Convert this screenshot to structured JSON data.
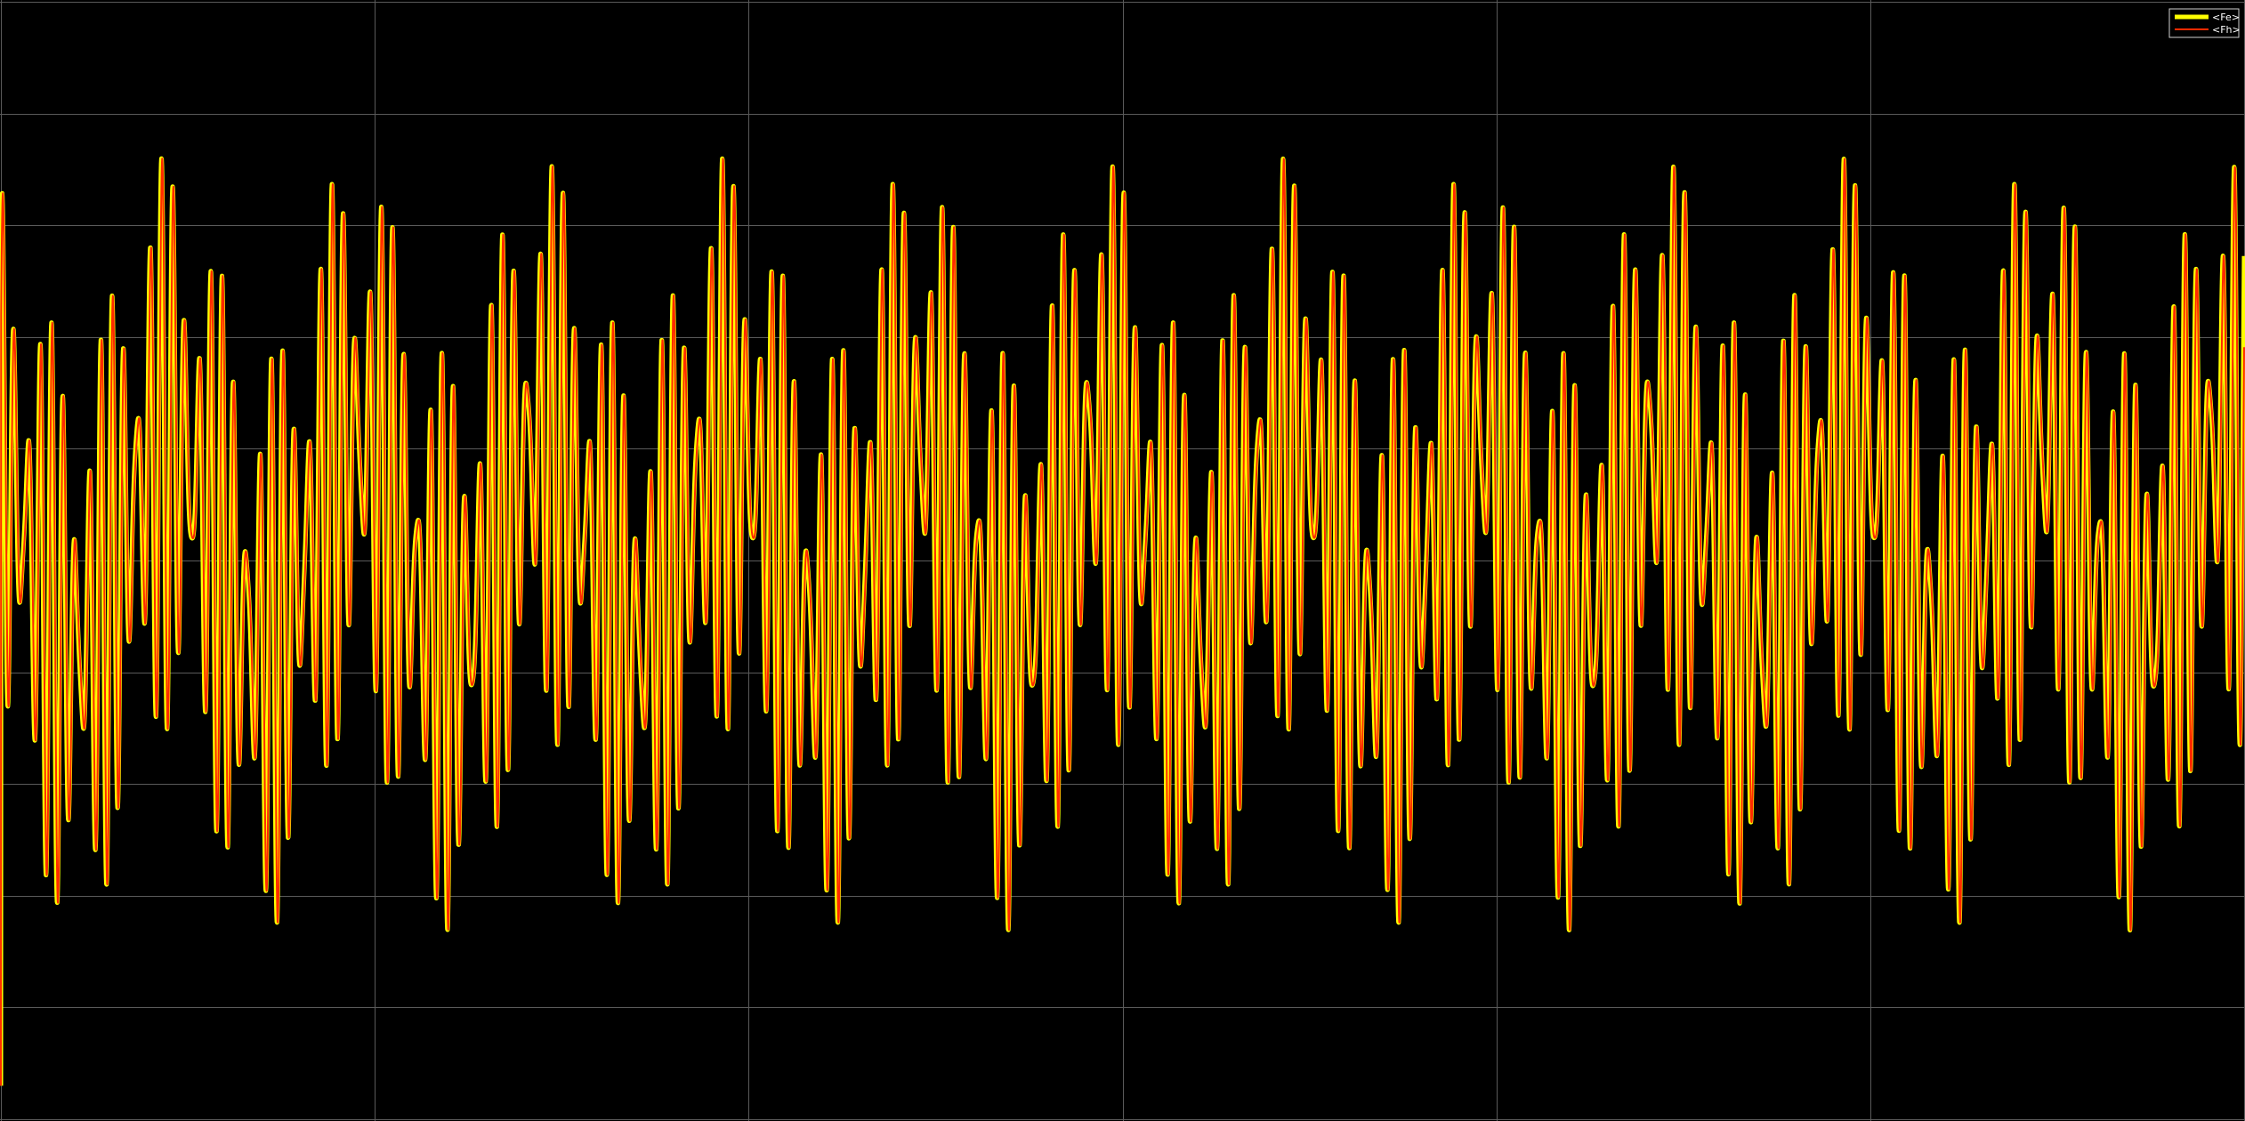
{
  "chart_data": {
    "type": "line",
    "title": "",
    "xlabel": "",
    "ylabel": "",
    "grid": true,
    "background": "#000000",
    "grid_color": "#5a5a5a",
    "xlim": [
      0,
      6
    ],
    "ylim": [
      -5,
      5
    ],
    "x_divisions": 6,
    "y_divisions": 10,
    "legend_position": "top-right",
    "series": [
      {
        "name": "<Fe>",
        "color": "#ffff00",
        "components": [
          {
            "amplitude": 1.0,
            "cycles_per_x": 37.333,
            "phase": 1.2
          },
          {
            "amplitude": 1.6,
            "cycles_per_x": 30.667,
            "phase": 0.6
          },
          {
            "amplitude": 0.9,
            "cycles_per_x": 2.0,
            "phase": 2.2
          }
        ],
        "offset": 0.15,
        "start_value": -4.7
      },
      {
        "name": "<Fh>",
        "color": "#ff2a00",
        "components": [
          {
            "amplitude": 1.0,
            "cycles_per_x": 37.333,
            "phase": 1.2
          },
          {
            "amplitude": 1.6,
            "cycles_per_x": 30.667,
            "phase": 0.6
          },
          {
            "amplitude": 0.9,
            "cycles_per_x": 2.0,
            "phase": 2.2
          }
        ],
        "offset": 0.15,
        "lag_x": 0.002,
        "start_value": -4.7
      }
    ]
  }
}
